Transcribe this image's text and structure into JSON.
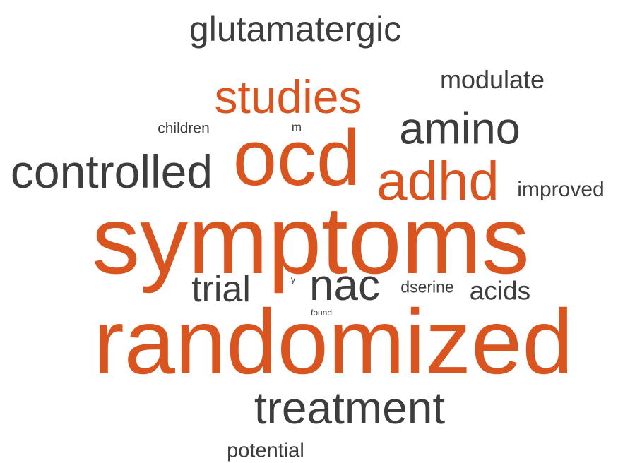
{
  "palette": {
    "accent": "#d9541e",
    "dark": "#3d3d3d",
    "background": "#ffffff"
  },
  "words": [
    {
      "id": "symptoms",
      "text": "symptoms",
      "color_key": "accent",
      "weight": 100
    },
    {
      "id": "randomized",
      "text": "randomized",
      "color_key": "accent",
      "weight": 97
    },
    {
      "id": "ocd",
      "text": "ocd",
      "color_key": "accent",
      "weight": 80
    },
    {
      "id": "adhd",
      "text": "adhd",
      "color_key": "accent",
      "weight": 52
    },
    {
      "id": "studies",
      "text": "studies",
      "color_key": "accent",
      "weight": 45
    },
    {
      "id": "treatment",
      "text": "treatment",
      "color_key": "dark",
      "weight": 47
    },
    {
      "id": "controlled",
      "text": "controlled",
      "color_key": "dark",
      "weight": 44
    },
    {
      "id": "amino",
      "text": "amino",
      "color_key": "dark",
      "weight": 42
    },
    {
      "id": "nac",
      "text": "nac",
      "color_key": "dark",
      "weight": 40
    },
    {
      "id": "glutamatergic",
      "text": "glutamatergic",
      "color_key": "dark",
      "weight": 33
    },
    {
      "id": "trial",
      "text": "trial",
      "color_key": "dark",
      "weight": 31
    },
    {
      "id": "modulate",
      "text": "modulate",
      "color_key": "dark",
      "weight": 24
    },
    {
      "id": "acids",
      "text": "acids",
      "color_key": "dark",
      "weight": 24
    },
    {
      "id": "potential",
      "text": "potential",
      "color_key": "dark",
      "weight": 20
    },
    {
      "id": "improved",
      "text": "improved",
      "color_key": "dark",
      "weight": 20
    },
    {
      "id": "dserine",
      "text": "dserine",
      "color_key": "dark",
      "weight": 16
    },
    {
      "id": "children",
      "text": "children",
      "color_key": "dark",
      "weight": 15
    },
    {
      "id": "m",
      "text": "m",
      "color_key": "dark",
      "weight": 12
    },
    {
      "id": "y",
      "text": "y",
      "color_key": "dark",
      "weight": 9
    },
    {
      "id": "found",
      "text": "found",
      "color_key": "dark",
      "weight": 8
    }
  ]
}
